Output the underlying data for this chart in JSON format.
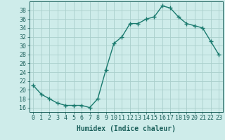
{
  "x": [
    0,
    1,
    2,
    3,
    4,
    5,
    6,
    7,
    8,
    9,
    10,
    11,
    12,
    13,
    14,
    15,
    16,
    17,
    18,
    19,
    20,
    21,
    22,
    23
  ],
  "y": [
    21,
    19,
    18,
    17,
    16.5,
    16.5,
    16.5,
    16,
    18,
    24.5,
    30.5,
    32,
    35,
    35,
    36,
    36.5,
    39,
    38.5,
    36.5,
    35,
    34.5,
    34,
    31,
    28
  ],
  "line_color": "#1a7a6e",
  "marker": "+",
  "markersize": 4,
  "markeredgewidth": 1.0,
  "linewidth": 1.0,
  "linestyle": "-",
  "xlabel": "Humidex (Indice chaleur)",
  "xlim": [
    -0.5,
    23.5
  ],
  "ylim": [
    15,
    40
  ],
  "yticks": [
    16,
    18,
    20,
    22,
    24,
    26,
    28,
    30,
    32,
    34,
    36,
    38
  ],
  "xticks": [
    0,
    1,
    2,
    3,
    4,
    5,
    6,
    7,
    8,
    9,
    10,
    11,
    12,
    13,
    14,
    15,
    16,
    17,
    18,
    19,
    20,
    21,
    22,
    23
  ],
  "bg_color": "#ceecea",
  "grid_color": "#aacfcc",
  "label_color": "#1a5f5a",
  "xlabel_fontsize": 7,
  "tick_fontsize": 6
}
